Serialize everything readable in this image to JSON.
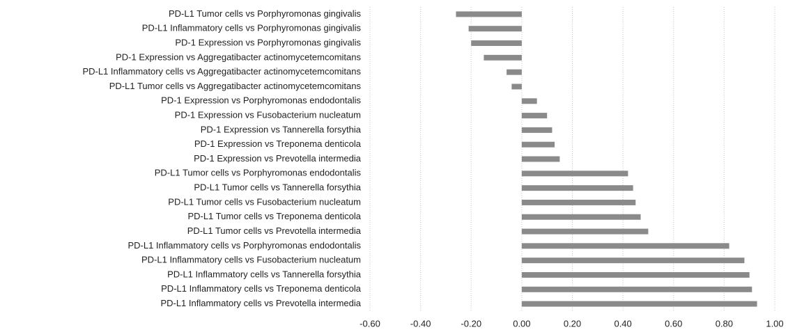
{
  "chart_data": {
    "type": "barh",
    "categories": [
      "PD-L1 Tumor cells vs Porphyromonas gingivalis",
      "PD-L1 Inflammatory cells vs Porphyromonas gingivalis",
      "PD-1 Expression vs Porphyromonas gingivalis",
      "PD-1 Expression vs Aggregatibacter actinomycetemcomitans",
      "PD-L1 Inflammatory cells vs Aggregatibacter actinomycetemcomitans",
      "PD-L1 Tumor cells vs Aggregatibacter actinomycetemcomitans",
      "PD-1 Expression vs Porphyromonas endodontalis",
      "PD-1 Expression vs Fusobacterium nucleatum",
      "PD-1 Expression vs Tannerella forsythia",
      "PD-1 Expression vs Treponema denticola",
      "PD-1 Expression vs Prevotella intermedia",
      "PD-L1 Tumor cells vs Porphyromonas endodontalis",
      "PD-L1 Tumor cells vs Tannerella forsythia",
      "PD-L1 Tumor cells vs Fusobacterium nucleatum",
      "PD-L1 Tumor cells vs Treponema denticola",
      "PD-L1 Tumor cells vs Prevotella intermedia",
      "PD-L1 Inflammatory cells vs Porphyromonas endodontalis",
      "PD-L1 Inflammatory cells vs Fusobacterium nucleatum",
      "PD-L1 Inflammatory cells vs Tannerella forsythia",
      "PD-L1 Inflammatory cells vs Treponema denticola",
      "PD-L1 Inflammatory cells vs Prevotella intermedia"
    ],
    "values": [
      -0.26,
      -0.21,
      -0.2,
      -0.15,
      -0.06,
      -0.04,
      0.06,
      0.1,
      0.12,
      0.13,
      0.15,
      0.42,
      0.44,
      0.45,
      0.47,
      0.5,
      0.82,
      0.88,
      0.9,
      0.91,
      0.93
    ],
    "color": "#8a8a8a",
    "xlim": [
      -0.6,
      1.0
    ],
    "xticks": [
      {
        "value": -0.6,
        "label": "-0.60"
      },
      {
        "value": -0.4,
        "label": "-0.40"
      },
      {
        "value": -0.2,
        "label": "-0.20"
      },
      {
        "value": 0,
        "label": "0.00"
      },
      {
        "value": 0.2,
        "label": "0.20"
      },
      {
        "value": 0.4,
        "label": "0.40"
      },
      {
        "value": 0.6,
        "label": "0.60"
      },
      {
        "value": 0.8,
        "label": "0.80"
      },
      {
        "value": 1.0,
        "label": "1.00"
      }
    ],
    "grid": true
  }
}
